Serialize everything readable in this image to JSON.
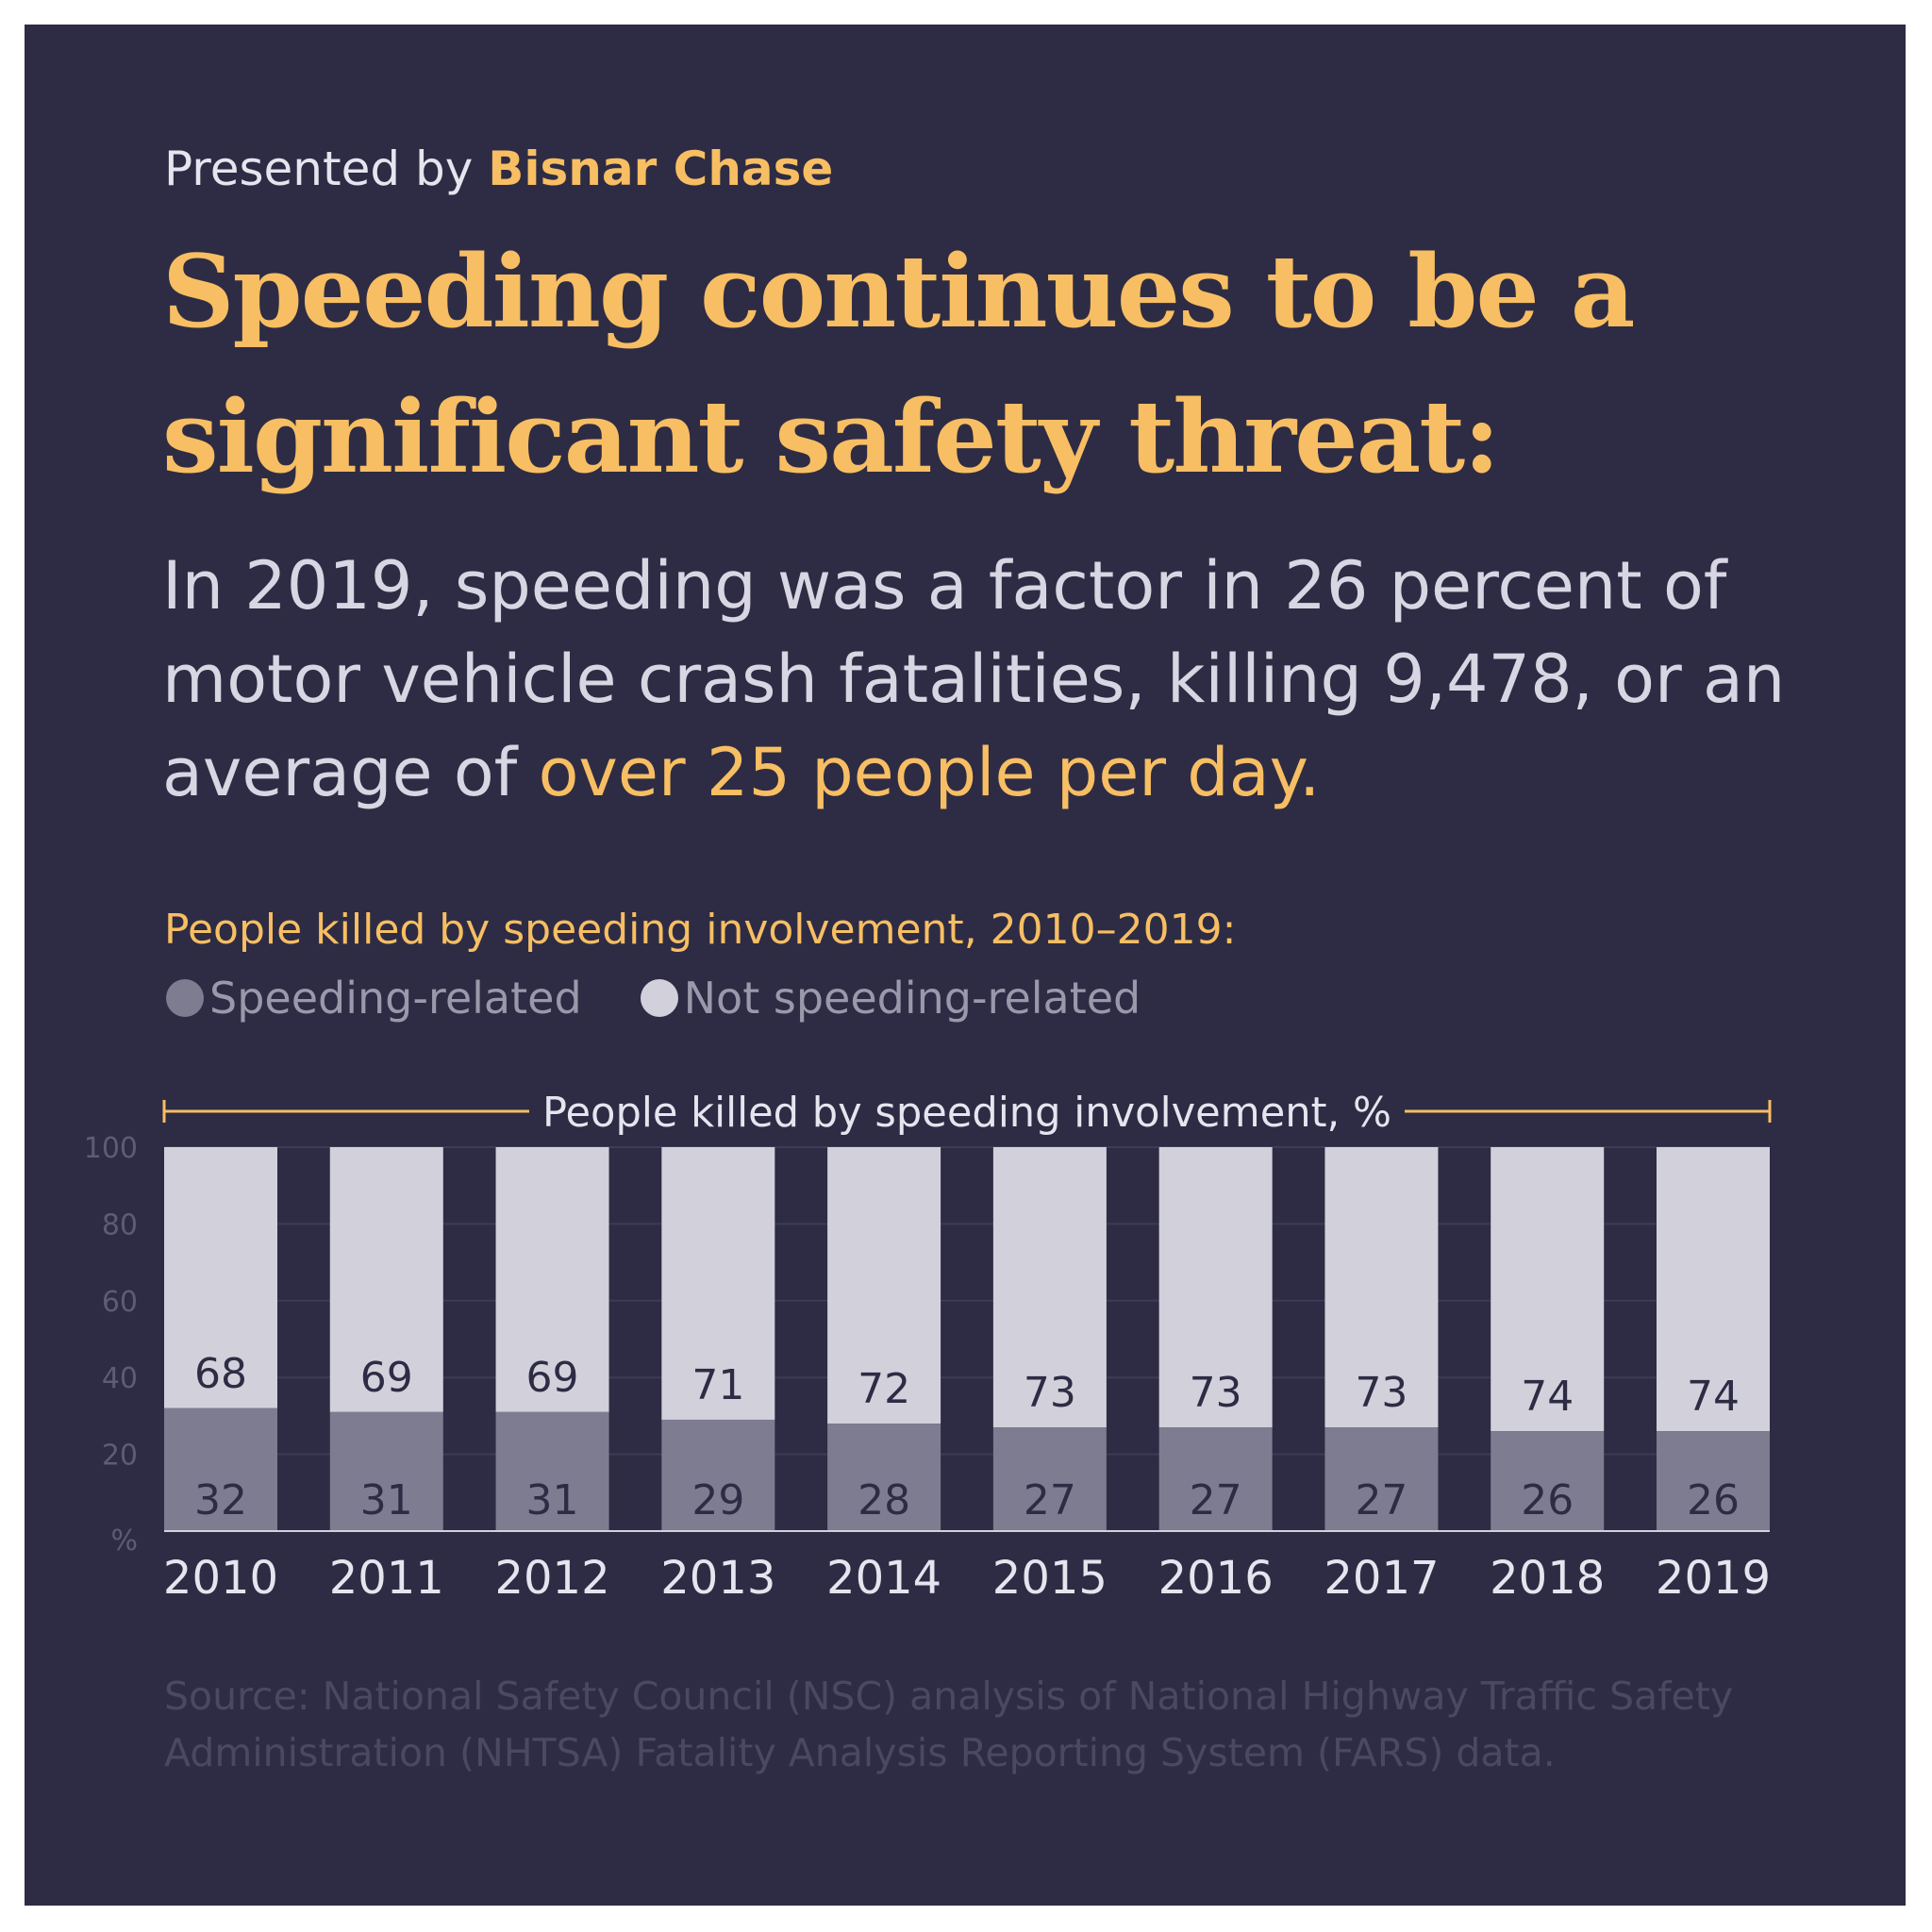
{
  "presented": {
    "prefix": "Presented by",
    "brand": "Bisnar Chase"
  },
  "headline": "Speeding continues to be a significant safety threat:",
  "subhead": {
    "text": "In 2019, speeding was a factor in 26 percent of motor vehicle crash fatalities, killing 9,478, or an average of",
    "highlight": "over 25 people per day."
  },
  "legend": {
    "speeding": "Speeding-related",
    "not_speeding": "Not speeding-related"
  },
  "source": "Source: National Safety Council (NSC) analysis of National Highway Traffic Safety Administration (NHTSA) Fatality Analysis Reporting System (FARS) data.",
  "colors": {
    "background": "#2e2c44",
    "accent": "#f7be63",
    "speeding": "#7e7c90",
    "not_speeding": "#d2d1db",
    "label": "#2e2c44"
  },
  "chart_data": {
    "type": "bar",
    "stacked": true,
    "title": "People killed by speeding involvement, 2010–2019:",
    "bracket_label": "People killed by speeding involvement, %",
    "categories": [
      "2010",
      "2011",
      "2012",
      "2013",
      "2014",
      "2015",
      "2016",
      "2017",
      "2018",
      "2019"
    ],
    "series": [
      {
        "name": "Speeding-related",
        "values": [
          32,
          31,
          31,
          29,
          28,
          27,
          27,
          27,
          26,
          26
        ]
      },
      {
        "name": "Not speeding-related",
        "values": [
          68,
          69,
          69,
          71,
          72,
          73,
          73,
          73,
          74,
          74
        ]
      }
    ],
    "yticks": [
      "100",
      "80",
      "60",
      "40",
      "20"
    ],
    "yunit": "%",
    "ylim": [
      0,
      100
    ],
    "grid": true,
    "legend_position": "top-left"
  }
}
